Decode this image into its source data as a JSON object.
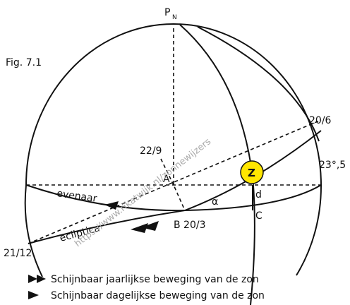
{
  "figure": "Fig. 7.1",
  "labels": {
    "pole": "P",
    "pole_sub": "N",
    "june": "20/6",
    "september": "22/9",
    "a": "A",
    "zenith": "Z",
    "angle": "23°,5",
    "d": "d",
    "equator": "evenaar",
    "alpha": "α",
    "c": "C",
    "march": "B 20/3",
    "ecliptic": "ecliptica",
    "december": "21/12"
  },
  "legend": [
    "Schijnbaar jaarlijkse beweging van de zon",
    "Schijnbaar dagelijkse beweging van de zon"
  ],
  "watermark": "https://www.rikatwijk.nl/zonnewijzers"
}
